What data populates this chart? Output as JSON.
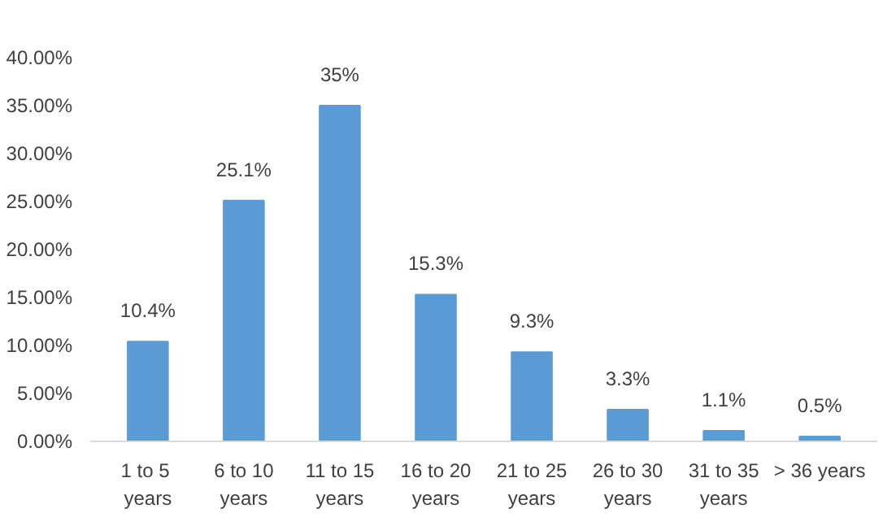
{
  "chart_data": {
    "type": "bar",
    "categories": [
      "1 to  5 years",
      "6 to 10 years",
      "11 to 15 years",
      "16 to 20 years",
      "21 to 25 years",
      "26 to 30 years",
      "31 to 35 years",
      "> 36 years"
    ],
    "values": [
      10.4,
      25.1,
      35,
      15.3,
      9.3,
      3.3,
      1.1,
      0.5
    ],
    "value_labels": [
      "10.4%",
      "25.1%",
      "35%",
      "15.3%",
      "9.3%",
      "3.3%",
      "1.1%",
      "0.5%"
    ],
    "color": "#5b9bd5",
    "ylim": [
      0,
      40
    ],
    "yticks": [
      {
        "value": 0,
        "label": "0.00%"
      },
      {
        "value": 5,
        "label": "5.00%"
      },
      {
        "value": 10,
        "label": "10.00%"
      },
      {
        "value": 15,
        "label": "15.00%"
      },
      {
        "value": 20,
        "label": "20.00%"
      },
      {
        "value": 25,
        "label": "25.00%"
      },
      {
        "value": 30,
        "label": "30.00%"
      },
      {
        "value": 35,
        "label": "35.00%"
      },
      {
        "value": 40,
        "label": "40.00%"
      }
    ],
    "grid": false
  }
}
